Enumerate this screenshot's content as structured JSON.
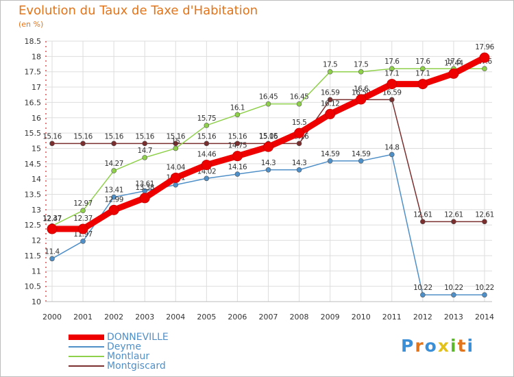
{
  "header": {
    "title": "Evolution du Taux de Taxe d'Habitation",
    "ylabel": "(en %)"
  },
  "brand": {
    "text": "Proxiti",
    "colors": [
      "#3a8fd6",
      "#e2741a",
      "#3a8fd6",
      "#e2c21a",
      "#5cb82a",
      "#e2741a",
      "#3a8fd6"
    ]
  },
  "chart_data": {
    "type": "line",
    "x": [
      2000,
      2001,
      2002,
      2003,
      2004,
      2005,
      2006,
      2007,
      2008,
      2009,
      2010,
      2011,
      2012,
      2013,
      2014
    ],
    "ylim": [
      10,
      18.5
    ],
    "yticks": [
      "10",
      "10.5",
      "11",
      "11.5",
      "12",
      "12.5",
      "13",
      "13.5",
      "14",
      "14.5",
      "15",
      "15.5",
      "16",
      "16.5",
      "17",
      "17.5",
      "18",
      "18.5"
    ],
    "grid": true,
    "legend_position": "bottom-left",
    "series": [
      {
        "name": "Montgiscard",
        "color": "#7a2e2e",
        "values": [
          15.16,
          15.16,
          15.16,
          15.16,
          15.16,
          15.16,
          15.16,
          15.16,
          15.16,
          16.59,
          16.59,
          16.59,
          12.61,
          12.61,
          12.61
        ],
        "labels": [
          "15.16",
          "15.16",
          "15.16",
          "15.16",
          "15.16",
          "15.16",
          "15.16",
          "15.16",
          "15.16",
          "16.59",
          "16.59",
          "16.59",
          "12.61",
          "12.61",
          "12.61"
        ]
      },
      {
        "name": "Deyme",
        "color": "#4f8fc8",
        "values": [
          11.4,
          11.97,
          13.41,
          13.61,
          13.81,
          14.02,
          14.16,
          14.3,
          14.3,
          14.59,
          14.59,
          14.8,
          10.22,
          10.22,
          10.22
        ],
        "labels": [
          "11.4",
          "11.97",
          "13.41",
          "13.61",
          "13.81",
          "14.02",
          "14.16",
          "14.3",
          "14.3",
          "14.59",
          "14.59",
          "14.8",
          "10.22",
          "10.22",
          "10.22"
        ]
      },
      {
        "name": "Montlaur",
        "color": "#8fd04a",
        "values": [
          12.47,
          12.97,
          14.27,
          14.7,
          15.0,
          15.75,
          16.1,
          16.45,
          16.45,
          17.5,
          17.5,
          17.6,
          17.6,
          17.6,
          17.6
        ],
        "labels": [
          "12.47",
          "12.97",
          "14.27",
          "14.7",
          "15",
          "15.75",
          "16.1",
          "16.45",
          "16.45",
          "17.5",
          "17.5",
          "17.6",
          "17.6",
          "17.6",
          "17.6"
        ]
      },
      {
        "name": "DONNEVILLE",
        "color": "#ee0000",
        "values": [
          12.37,
          12.37,
          12.99,
          13.38,
          14.04,
          14.46,
          14.75,
          15.05,
          15.5,
          16.12,
          16.6,
          17.1,
          17.1,
          17.44,
          17.96
        ],
        "labels": [
          "12.37",
          "12.37",
          "12.99",
          "13.38",
          "14.04",
          "14.46",
          "14.75",
          "15.05",
          "15.5",
          "16.12",
          "16.6",
          "17.1",
          "17.1",
          "17.44",
          "17.96"
        ]
      }
    ]
  },
  "legend": {
    "items": [
      {
        "label": "DONNEVILLE",
        "color": "#ee0000"
      },
      {
        "label": "Deyme",
        "color": "#4f8fc8"
      },
      {
        "label": "Montlaur",
        "color": "#8fd04a"
      },
      {
        "label": "Montgiscard",
        "color": "#7a2e2e"
      }
    ]
  }
}
